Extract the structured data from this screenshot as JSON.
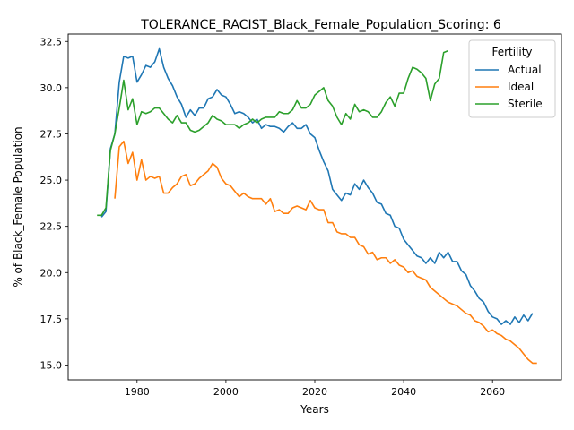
{
  "chart_data": {
    "type": "line",
    "title": "TOLERANCE_RACIST_Black_Female_Population_Scoring: 6",
    "xlabel": "Years",
    "ylabel": "% of Black_Female Population",
    "xlim": [
      1964.5,
      2075.5
    ],
    "ylim": [
      14.2,
      32.9
    ],
    "xticks": [
      1980,
      2000,
      2020,
      2040,
      2060
    ],
    "yticks": [
      15.0,
      17.5,
      20.0,
      22.5,
      25.0,
      27.5,
      30.0,
      32.5
    ],
    "xtick_labels": [
      "1980",
      "2000",
      "2020",
      "2040",
      "2060"
    ],
    "ytick_labels": [
      "15.0",
      "17.5",
      "20.0",
      "22.5",
      "25.0",
      "27.5",
      "30.0",
      "32.5"
    ],
    "grid": false,
    "legend": {
      "title": "Fertility",
      "placement": "top-right"
    },
    "series": [
      {
        "name": "Actual",
        "color": "#1f77b4",
        "x": [
          1972,
          1973,
          1974,
          1975,
          1976,
          1977,
          1978,
          1979,
          1980,
          1981,
          1982,
          1983,
          1984,
          1985,
          1986,
          1987,
          1988,
          1989,
          1990,
          1991,
          1992,
          1993,
          1994,
          1995,
          1996,
          1997,
          1998,
          1999,
          2000,
          2001,
          2002,
          2003,
          2004,
          2005,
          2006,
          2007,
          2008,
          2009,
          2010,
          2011,
          2012,
          2013,
          2014,
          2015,
          2016,
          2017,
          2018,
          2019,
          2020,
          2021,
          2022,
          2023,
          2024,
          2025,
          2026,
          2027,
          2028,
          2029,
          2030,
          2031,
          2032,
          2033,
          2034,
          2035,
          2036,
          2037,
          2038,
          2039,
          2040,
          2041,
          2042,
          2043,
          2044,
          2045,
          2046,
          2047,
          2048,
          2049,
          2050,
          2051,
          2052,
          2053,
          2054,
          2055,
          2056,
          2057,
          2058,
          2059,
          2060,
          2061,
          2062,
          2063,
          2064,
          2065,
          2066,
          2067,
          2068,
          2069,
          2070
        ],
        "values": [
          23.0,
          23.3,
          26.7,
          27.5,
          30.3,
          31.7,
          31.6,
          31.7,
          30.3,
          30.7,
          31.2,
          31.1,
          31.4,
          32.1,
          31.1,
          30.5,
          30.1,
          29.5,
          29.1,
          28.4,
          28.8,
          28.5,
          28.9,
          28.9,
          29.4,
          29.5,
          29.9,
          29.6,
          29.5,
          29.1,
          28.6,
          28.7,
          28.6,
          28.4,
          28.1,
          28.3,
          27.8,
          28.0,
          27.9,
          27.9,
          27.8,
          27.6,
          27.9,
          28.1,
          27.8,
          27.8,
          28.0,
          27.5,
          27.3,
          26.6,
          26.0,
          25.5,
          24.5,
          24.2,
          23.9,
          24.3,
          24.2,
          24.8,
          24.5,
          25.0,
          24.6,
          24.3,
          23.8,
          23.7,
          23.2,
          23.1,
          22.5,
          22.4,
          21.8,
          21.5,
          21.2,
          20.9,
          20.8,
          20.5,
          20.8,
          20.5,
          21.1,
          20.8,
          21.1,
          20.6,
          20.6,
          20.1,
          19.9,
          19.3,
          19.0,
          18.6,
          18.4,
          17.9,
          17.6,
          17.5,
          17.2,
          17.4,
          17.2,
          17.6,
          17.3,
          17.7,
          17.4,
          17.8,
          null
        ]
      },
      {
        "name": "Ideal",
        "color": "#ff7f0e",
        "x": [
          1975,
          1976,
          1977,
          1978,
          1979,
          1980,
          1981,
          1982,
          1983,
          1984,
          1985,
          1986,
          1987,
          1988,
          1989,
          1990,
          1991,
          1992,
          1993,
          1994,
          1995,
          1996,
          1997,
          1998,
          1999,
          2000,
          2001,
          2002,
          2003,
          2004,
          2005,
          2006,
          2007,
          2008,
          2009,
          2010,
          2011,
          2012,
          2013,
          2014,
          2015,
          2016,
          2017,
          2018,
          2019,
          2020,
          2021,
          2022,
          2023,
          2024,
          2025,
          2026,
          2027,
          2028,
          2029,
          2030,
          2031,
          2032,
          2033,
          2034,
          2035,
          2036,
          2037,
          2038,
          2039,
          2040,
          2041,
          2042,
          2043,
          2044,
          2045,
          2046,
          2047,
          2048,
          2049,
          2050,
          2051,
          2052,
          2053,
          2054,
          2055,
          2056,
          2057,
          2058,
          2059,
          2060,
          2061,
          2062,
          2063,
          2064,
          2065,
          2066,
          2067,
          2068,
          2069,
          2070
        ],
        "values": [
          24.0,
          26.8,
          27.1,
          25.9,
          26.5,
          25.0,
          26.1,
          25.0,
          25.2,
          25.1,
          25.2,
          24.3,
          24.3,
          24.6,
          24.8,
          25.2,
          25.3,
          24.7,
          24.8,
          25.1,
          25.3,
          25.5,
          25.9,
          25.7,
          25.1,
          24.8,
          24.7,
          24.4,
          24.1,
          24.3,
          24.1,
          24.0,
          24.0,
          24.0,
          23.7,
          24.0,
          23.3,
          23.4,
          23.2,
          23.2,
          23.5,
          23.6,
          23.5,
          23.4,
          23.9,
          23.5,
          23.4,
          23.4,
          22.7,
          22.7,
          22.2,
          22.1,
          22.1,
          21.9,
          21.9,
          21.5,
          21.4,
          21.0,
          21.1,
          20.7,
          20.8,
          20.8,
          20.5,
          20.7,
          20.4,
          20.3,
          20.0,
          20.1,
          19.8,
          19.7,
          19.6,
          19.2,
          19.0,
          18.8,
          18.6,
          18.4,
          18.3,
          18.2,
          18.0,
          17.8,
          17.7,
          17.4,
          17.3,
          17.1,
          16.8,
          16.9,
          16.7,
          16.6,
          16.4,
          16.3,
          16.1,
          15.9,
          15.6,
          15.3,
          15.1,
          15.1
        ]
      },
      {
        "name": "Sterile",
        "color": "#2ca02c",
        "x": [
          1971,
          1972,
          1973,
          1974,
          1975,
          1976,
          1977,
          1978,
          1979,
          1980,
          1981,
          1982,
          1983,
          1984,
          1985,
          1986,
          1987,
          1988,
          1989,
          1990,
          1991,
          1992,
          1993,
          1994,
          1995,
          1996,
          1997,
          1998,
          1999,
          2000,
          2001,
          2002,
          2003,
          2004,
          2005,
          2006,
          2007,
          2008,
          2009,
          2010,
          2011,
          2012,
          2013,
          2014,
          2015,
          2016,
          2017,
          2018,
          2019,
          2020,
          2021,
          2022,
          2023,
          2024,
          2025,
          2026,
          2027,
          2028,
          2029,
          2030,
          2031,
          2032,
          2033,
          2034,
          2035,
          2036,
          2037,
          2038,
          2039,
          2040,
          2041,
          2042,
          2043,
          2044,
          2045,
          2046,
          2047,
          2048,
          2049,
          2050
        ],
        "values": [
          23.1,
          23.1,
          23.5,
          26.6,
          27.5,
          28.9,
          30.4,
          28.8,
          29.4,
          28.0,
          28.7,
          28.6,
          28.7,
          28.9,
          28.9,
          28.6,
          28.3,
          28.1,
          28.5,
          28.1,
          28.1,
          27.7,
          27.6,
          27.7,
          27.9,
          28.1,
          28.5,
          28.3,
          28.2,
          28.0,
          28.0,
          28.0,
          27.8,
          28.0,
          28.1,
          28.3,
          28.1,
          28.3,
          28.4,
          28.4,
          28.4,
          28.7,
          28.6,
          28.6,
          28.8,
          29.3,
          28.9,
          28.9,
          29.1,
          29.6,
          29.8,
          30.0,
          29.3,
          29.0,
          28.4,
          28.0,
          28.6,
          28.3,
          29.1,
          28.7,
          28.8,
          28.7,
          28.4,
          28.4,
          28.7,
          29.2,
          29.5,
          29.0,
          29.7,
          29.7,
          30.5,
          31.1,
          31.0,
          30.8,
          30.5,
          29.3,
          30.2,
          30.5,
          31.9,
          32.0
        ]
      }
    ]
  }
}
